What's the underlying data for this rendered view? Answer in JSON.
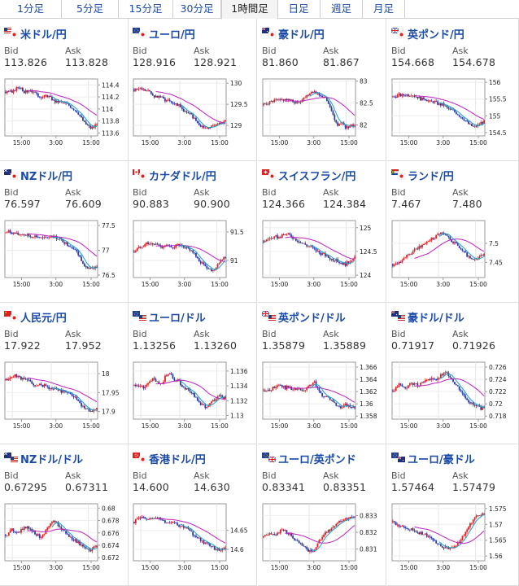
{
  "tabs": [
    {
      "label": "1分足",
      "active": false
    },
    {
      "label": "5分足",
      "active": false
    },
    {
      "label": "15分足",
      "active": false
    },
    {
      "label": "30分足",
      "active": false
    },
    {
      "label": "1時間足",
      "active": true
    },
    {
      "label": "日足",
      "active": false
    },
    {
      "label": "週足",
      "active": false
    },
    {
      "label": "月足",
      "active": false
    }
  ],
  "bid_label": "Bid",
  "ask_label": "Ask",
  "xticks": [
    "15:00",
    "3:00",
    "15:00"
  ],
  "colors": {
    "up": "#e82020",
    "down": "#2a3aa6",
    "ma_short": "#1aa0c8",
    "ma_long": "#c020c0",
    "link": "#1a4aa8"
  },
  "pairs": [
    {
      "name": "米ドル/円",
      "icon": "us-jp-flag-icon",
      "bid": "113.826",
      "ask": "113.828",
      "yticks": [
        "114.4",
        "114.2",
        "114",
        "113.8",
        "113.6"
      ],
      "ylim": [
        113.55,
        114.5
      ]
    },
    {
      "name": "ユーロ/円",
      "icon": "eu-jp-flag-icon",
      "bid": "128.916",
      "ask": "128.921",
      "yticks": [
        "130",
        "129.5",
        "129"
      ],
      "ylim": [
        128.75,
        130.1
      ]
    },
    {
      "name": "豪ドル/円",
      "icon": "au-jp-flag-icon",
      "bid": "81.860",
      "ask": "81.867",
      "yticks": [
        "83",
        "82.5",
        "82"
      ],
      "ylim": [
        81.75,
        83.05
      ]
    },
    {
      "name": "英ポンド/円",
      "icon": "gb-jp-flag-icon",
      "bid": "154.668",
      "ask": "154.678",
      "yticks": [
        "156",
        "155.5",
        "155",
        "154.5"
      ],
      "ylim": [
        154.4,
        156.1
      ]
    },
    {
      "name": "NZドル/円",
      "icon": "nz-jp-flag-icon",
      "bid": "76.597",
      "ask": "76.609",
      "yticks": [
        "77.5",
        "77",
        "76.5"
      ],
      "ylim": [
        76.45,
        77.6
      ]
    },
    {
      "name": "カナダドル/円",
      "icon": "ca-jp-flag-icon",
      "bid": "90.883",
      "ask": "90.900",
      "yticks": [
        "91.5",
        "91"
      ],
      "ylim": [
        90.7,
        91.7
      ]
    },
    {
      "name": "スイスフラン/円",
      "icon": "ch-jp-flag-icon",
      "bid": "124.366",
      "ask": "124.384",
      "yticks": [
        "125",
        "124.5",
        "124"
      ],
      "ylim": [
        123.95,
        125.15
      ]
    },
    {
      "name": "ランド/円",
      "icon": "za-jp-flag-icon",
      "bid": "7.467",
      "ask": "7.480",
      "yticks": [
        "7.5",
        "7.45"
      ],
      "ylim": [
        7.41,
        7.56
      ]
    },
    {
      "name": "人民元/円",
      "icon": "cn-jp-flag-icon",
      "bid": "17.922",
      "ask": "17.952",
      "yticks": [
        "18",
        "17.95",
        "17.9"
      ],
      "ylim": [
        17.88,
        18.03
      ]
    },
    {
      "name": "ユーロ/ドル",
      "icon": "eu-us-flag-icon",
      "bid": "1.13256",
      "ask": "1.13260",
      "yticks": [
        "1.136",
        "1.134",
        "1.132",
        "1.13"
      ],
      "ylim": [
        1.1295,
        1.1372
      ]
    },
    {
      "name": "英ポンド/ドル",
      "icon": "gb-us-flag-icon",
      "bid": "1.35879",
      "ask": "1.35889",
      "yticks": [
        "1.366",
        "1.364",
        "1.362",
        "1.36",
        "1.358"
      ],
      "ylim": [
        1.3575,
        1.3668
      ]
    },
    {
      "name": "豪ドル/ドル",
      "icon": "au-us-flag-icon",
      "bid": "0.71917",
      "ask": "0.71926",
      "yticks": [
        "0.726",
        "0.724",
        "0.722",
        "0.72",
        "0.718"
      ],
      "ylim": [
        0.7175,
        0.7268
      ]
    },
    {
      "name": "NZドル/ドル",
      "icon": "nz-us-flag-icon",
      "bid": "0.67295",
      "ask": "0.67311",
      "yticks": [
        "0.68",
        "0.678",
        "0.676",
        "0.674",
        "0.672"
      ],
      "ylim": [
        0.6715,
        0.6807
      ]
    },
    {
      "name": "香港ドル/円",
      "icon": "hk-jp-flag-icon",
      "bid": "14.600",
      "ask": "14.630",
      "yticks": [
        "14.65",
        "14.6"
      ],
      "ylim": [
        14.57,
        14.72
      ]
    },
    {
      "name": "ユーロ/英ポンド",
      "icon": "eu-gb-flag-icon",
      "bid": "0.83341",
      "ask": "0.83351",
      "yticks": [
        "0.833",
        "0.832",
        "0.831"
      ],
      "ylim": [
        0.8303,
        0.8337
      ]
    },
    {
      "name": "ユーロ/豪ドル",
      "icon": "eu-au-flag-icon",
      "bid": "1.57464",
      "ask": "1.57479",
      "yticks": [
        "1.575",
        "1.57",
        "1.565",
        "1.56"
      ],
      "ylim": [
        1.5585,
        1.5765
      ]
    }
  ]
}
